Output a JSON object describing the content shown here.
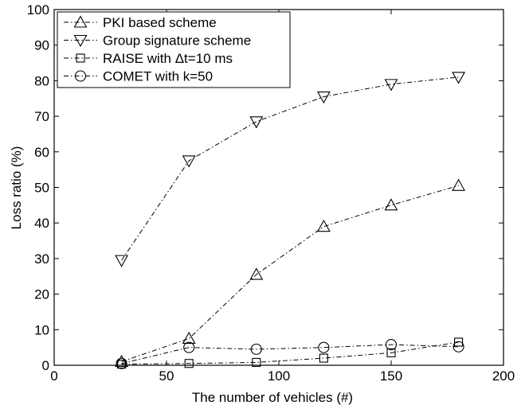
{
  "chart_data": {
    "type": "line",
    "title": "",
    "xlabel": "The number of vehicles (#)",
    "ylabel": "Loss ratio (%)",
    "xlim": [
      0,
      200
    ],
    "ylim": [
      0,
      100
    ],
    "xticks": [
      0,
      50,
      100,
      150,
      200
    ],
    "yticks": [
      0,
      10,
      20,
      30,
      40,
      50,
      60,
      70,
      80,
      90,
      100
    ],
    "grid": false,
    "legend_position": "top-left",
    "line_style": "dash-dot",
    "color": "#000000",
    "x": [
      30,
      60,
      90,
      120,
      150,
      180
    ],
    "series": [
      {
        "name": "PKI based scheme",
        "marker": "triangle-up",
        "values": [
          1.0,
          7.5,
          25.5,
          39.0,
          45.0,
          50.5
        ]
      },
      {
        "name": "Group signature scheme",
        "marker": "triangle-down",
        "values": [
          29.5,
          57.5,
          68.5,
          75.5,
          79.0,
          81.0
        ]
      },
      {
        "name": "RAISE with Δt=10 ms",
        "marker": "square",
        "values": [
          0.3,
          0.5,
          0.8,
          2.0,
          3.5,
          6.5
        ]
      },
      {
        "name": "COMET with k=50",
        "marker": "circle",
        "values": [
          0.5,
          5.0,
          4.5,
          5.0,
          5.8,
          5.2
        ]
      }
    ]
  }
}
